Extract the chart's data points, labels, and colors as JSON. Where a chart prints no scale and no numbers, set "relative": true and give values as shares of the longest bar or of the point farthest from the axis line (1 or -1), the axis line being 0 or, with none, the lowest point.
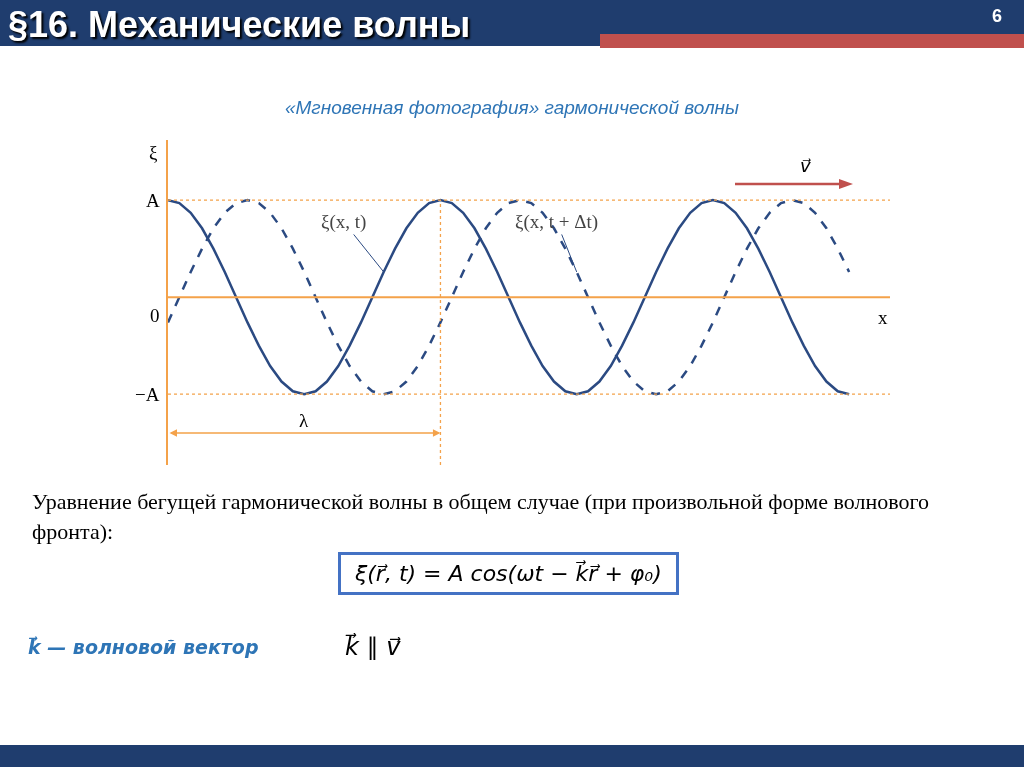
{
  "chart_data": {
    "type": "line",
    "title": "§16. Механические волны",
    "subtitle": "«Мгновенная фотография» гармонической волны",
    "xlabel": "x",
    "ylabel": "ξ",
    "relative": true,
    "grid": false,
    "marker": "none",
    "categories": [
      null,
      null,
      null,
      null,
      null,
      null,
      null,
      null,
      null,
      null,
      null,
      null,
      null,
      null,
      null,
      null,
      null,
      null,
      null,
      null,
      null,
      null,
      null,
      null,
      null,
      null,
      null,
      null,
      null,
      null,
      null,
      null,
      null,
      null,
      null,
      null,
      null,
      null,
      null,
      null,
      null,
      null,
      null,
      null,
      null,
      null,
      null,
      null,
      null,
      null,
      null,
      null,
      null,
      null,
      null,
      null,
      null,
      null,
      null,
      null,
      null
    ],
    "series": [
      {
        "color": "#2b4a82",
        "line_style": "solid",
        "values": [
          1,
          0.97,
          0.87,
          0.71,
          0.5,
          0.26,
          0,
          -0.26,
          -0.5,
          -0.71,
          -0.87,
          -0.97,
          -1,
          -0.97,
          -0.87,
          -0.71,
          -0.5,
          -0.26,
          0,
          0.26,
          0.5,
          0.71,
          0.87,
          0.97,
          1,
          0.97,
          0.87,
          0.71,
          0.5,
          0.26,
          0,
          -0.26,
          -0.5,
          -0.71,
          -0.87,
          -0.97,
          -1,
          -0.97,
          -0.87,
          -0.71,
          -0.5,
          -0.26,
          0,
          0.26,
          0.5,
          0.71,
          0.87,
          0.97,
          1,
          0.97,
          0.87,
          0.71,
          0.5,
          0.26,
          0,
          -0.26,
          -0.5,
          -0.71,
          -0.87,
          -0.97,
          -1
        ]
      },
      {
        "color": "#2b4a82",
        "line_style": "dashed",
        "values": [
          -0.26,
          0,
          0.26,
          0.5,
          0.71,
          0.87,
          0.97,
          1,
          0.97,
          0.87,
          0.71,
          0.5,
          0.26,
          0,
          -0.26,
          -0.5,
          -0.71,
          -0.87,
          -0.97,
          -1,
          -0.97,
          -0.87,
          -0.71,
          -0.5,
          -0.26,
          0,
          0.26,
          0.5,
          0.71,
          0.87,
          0.97,
          1,
          0.97,
          0.87,
          0.71,
          0.5,
          0.26,
          0,
          -0.26,
          -0.5,
          -0.71,
          -0.87,
          -0.97,
          -1,
          -0.97,
          -0.87,
          -0.71,
          -0.5,
          -0.26,
          0,
          0.26,
          0.5,
          0.71,
          0.87,
          0.97,
          1,
          0.97,
          0.87,
          0.71,
          0.5,
          0.26
        ]
      }
    ],
    "ref_lines": [
      {
        "axis": "y",
        "value": 0,
        "label": "0",
        "color": "#f4a24a",
        "line_style": "solid"
      },
      {
        "axis": "y",
        "value": 1,
        "label": "A",
        "color": "#f4a24a",
        "line_style": "dotted"
      },
      {
        "axis": "y",
        "value": -1,
        "label": "−A",
        "color": "#f4a24a",
        "line_style": "dotted"
      }
    ],
    "annotations": [
      "ξ(x, t)",
      "ξ(x, t + Δt)",
      "λ",
      "v⃗",
      "6",
      "Уравнение бегущей гармонической волны в общем случае (при произвольной форме волнового фронта):",
      "ξ(r⃗, t) = A cos(ωt − k⃗r⃗ + φ₀)",
      "k⃗ — волновой вектор",
      "k⃗ ∥ v⃗"
    ]
  }
}
